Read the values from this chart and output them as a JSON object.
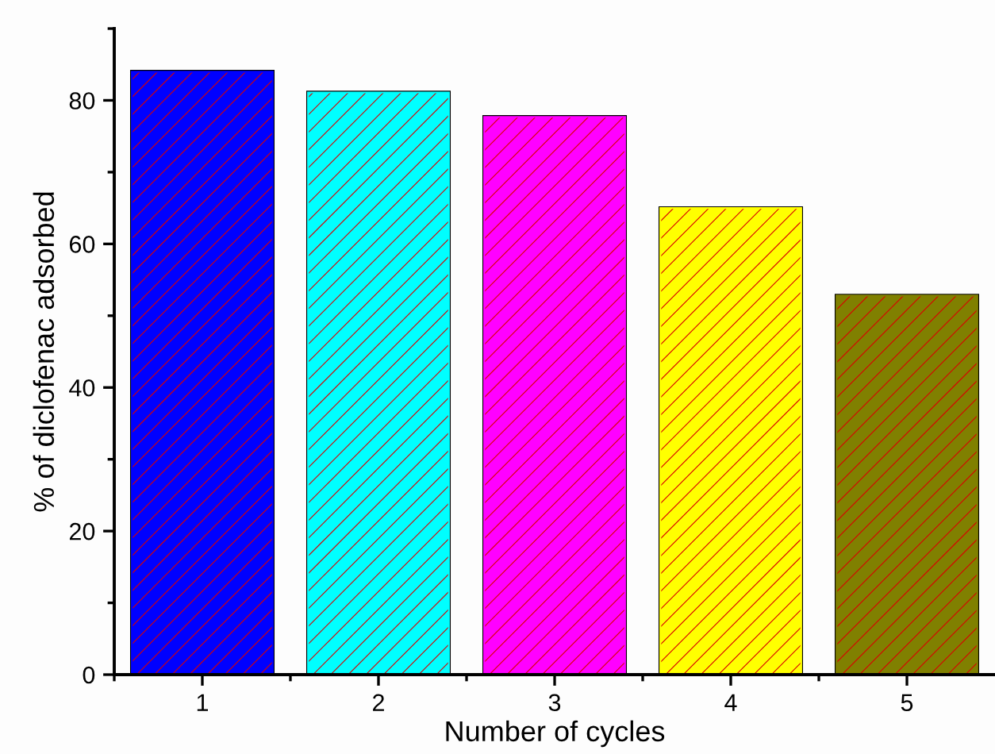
{
  "chart_data": {
    "type": "bar",
    "xlabel": "Number of cycles",
    "ylabel": "% of diclofenac adsorbed",
    "categories": [
      "1",
      "2",
      "3",
      "4",
      "5"
    ],
    "values": [
      84.0,
      81.1,
      77.7,
      65.0,
      52.8
    ],
    "colors": [
      "#0000ff",
      "#00ffff",
      "#ff00ff",
      "#ffff00",
      "#808000"
    ],
    "ylim": [
      0,
      90
    ],
    "yticks": [
      0,
      20,
      40,
      60,
      80
    ],
    "grid": false
  }
}
